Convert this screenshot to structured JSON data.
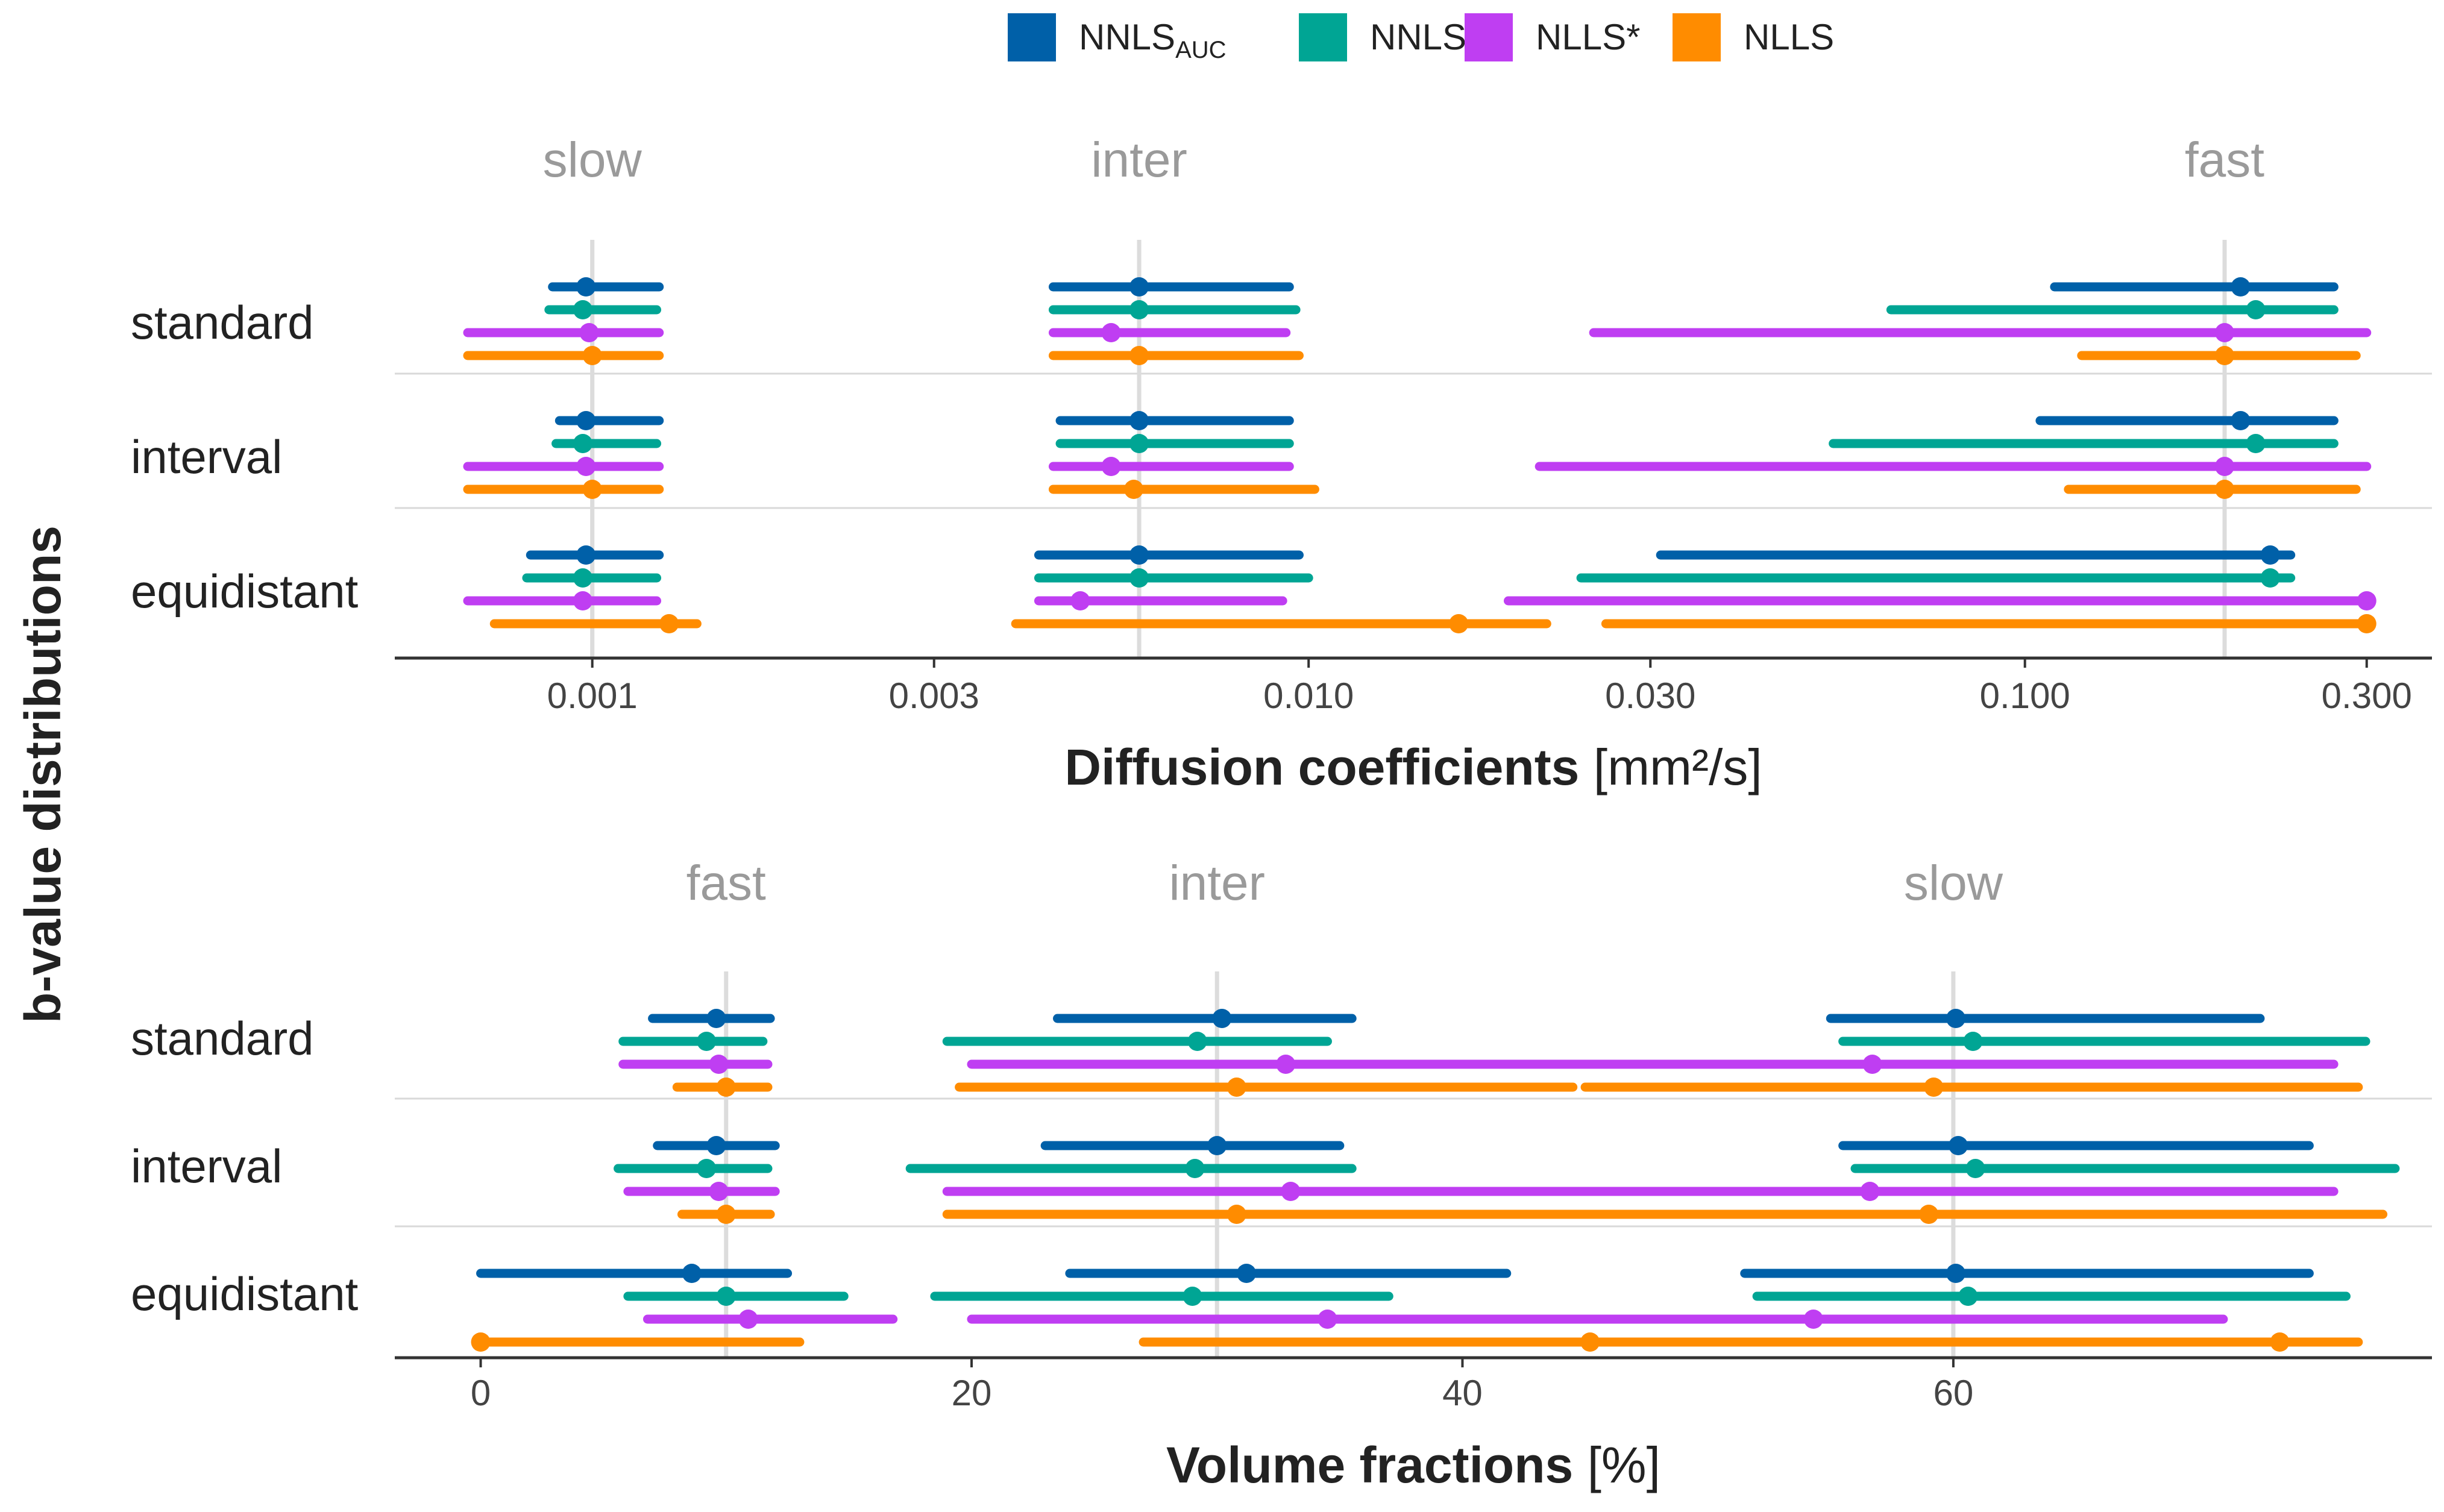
{
  "chart_data": {
    "type": "interval",
    "legend": {
      "position": "top",
      "entries": [
        {
          "name": "NNLS",
          "subscript": "AUC",
          "color": "#0060A8"
        },
        {
          "name": "NNLS",
          "subscript": "",
          "color": "#00A594"
        },
        {
          "name": "NLLS*",
          "subscript": "",
          "color": "#BF3EF2"
        },
        {
          "name": "NLLS",
          "subscript": "",
          "color": "#FF8C00"
        }
      ]
    },
    "ylabel": "b-value distributions",
    "rows": [
      "standard",
      "interval",
      "equidistant"
    ],
    "panels": [
      {
        "xlabel_bold": "Diffusion coefficients",
        "xlabel_unit": "[mm²/s]",
        "scale": "log",
        "xlim": [
          0.00053,
          0.37
        ],
        "ticks": [
          0.001,
          0.003,
          0.01,
          0.03,
          0.1,
          0.3
        ],
        "tick_labels": [
          "0.001",
          "0.003",
          "0.010",
          "0.030",
          "0.100",
          "0.300"
        ],
        "groups": [
          {
            "label": "slow",
            "ref": 0.001
          },
          {
            "label": "inter",
            "ref": 0.0058
          },
          {
            "label": "fast",
            "ref": 0.19
          }
        ],
        "data": {
          "standard": [
            [
              {
                "median": 0.00098,
                "low": 0.00088,
                "high": 0.00124
              },
              {
                "median": 0.0058,
                "low": 0.0044,
                "high": 0.0094
              },
              {
                "median": 0.2,
                "low": 0.11,
                "high": 0.27
              }
            ],
            [
              {
                "median": 0.00097,
                "low": 0.00087,
                "high": 0.00123
              },
              {
                "median": 0.0058,
                "low": 0.0044,
                "high": 0.0096
              },
              {
                "median": 0.21,
                "low": 0.065,
                "high": 0.27
              }
            ],
            [
              {
                "median": 0.00099,
                "low": 0.00067,
                "high": 0.00124
              },
              {
                "median": 0.0053,
                "low": 0.0044,
                "high": 0.0093
              },
              {
                "median": 0.19,
                "low": 0.025,
                "high": 0.3
              }
            ],
            [
              {
                "median": 0.001,
                "low": 0.00067,
                "high": 0.00124
              },
              {
                "median": 0.0058,
                "low": 0.0044,
                "high": 0.0097
              },
              {
                "median": 0.19,
                "low": 0.12,
                "high": 0.29
              }
            ]
          ],
          "interval": [
            [
              {
                "median": 0.00098,
                "low": 0.0009,
                "high": 0.00124
              },
              {
                "median": 0.0058,
                "low": 0.0045,
                "high": 0.0094
              },
              {
                "median": 0.2,
                "low": 0.105,
                "high": 0.27
              }
            ],
            [
              {
                "median": 0.00097,
                "low": 0.00089,
                "high": 0.00123
              },
              {
                "median": 0.0058,
                "low": 0.0045,
                "high": 0.0094
              },
              {
                "median": 0.21,
                "low": 0.054,
                "high": 0.27
              }
            ],
            [
              {
                "median": 0.00098,
                "low": 0.00067,
                "high": 0.00124
              },
              {
                "median": 0.0053,
                "low": 0.0044,
                "high": 0.0094
              },
              {
                "median": 0.19,
                "low": 0.021,
                "high": 0.3
              }
            ],
            [
              {
                "median": 0.001,
                "low": 0.00067,
                "high": 0.00124
              },
              {
                "median": 0.0057,
                "low": 0.0044,
                "high": 0.0102
              },
              {
                "median": 0.19,
                "low": 0.115,
                "high": 0.29
              }
            ]
          ],
          "equidistant": [
            [
              {
                "median": 0.00098,
                "low": 0.00082,
                "high": 0.00124
              },
              {
                "median": 0.0058,
                "low": 0.0042,
                "high": 0.0097
              },
              {
                "median": 0.22,
                "low": 0.031,
                "high": 0.235
              }
            ],
            [
              {
                "median": 0.00097,
                "low": 0.00081,
                "high": 0.00123
              },
              {
                "median": 0.0058,
                "low": 0.0042,
                "high": 0.01
              },
              {
                "median": 0.22,
                "low": 0.024,
                "high": 0.235
              }
            ],
            [
              {
                "median": 0.00097,
                "low": 0.00067,
                "high": 0.00123
              },
              {
                "median": 0.0048,
                "low": 0.0042,
                "high": 0.0092
              },
              {
                "median": 0.3,
                "low": 0.019,
                "high": 0.3
              }
            ],
            [
              {
                "median": 0.00128,
                "low": 0.00073,
                "high": 0.0014
              },
              {
                "median": 0.0162,
                "low": 0.0039,
                "high": 0.0215
              },
              {
                "median": 0.3,
                "low": 0.026,
                "high": 0.3
              }
            ]
          ]
        }
      },
      {
        "xlabel_bold": "Volume fractions",
        "xlabel_unit": "[%]",
        "scale": "linear",
        "xlim": [
          -3.5,
          79.5
        ],
        "ticks": [
          0,
          20,
          40,
          60
        ],
        "tick_labels": [
          "0",
          "20",
          "40",
          "60"
        ],
        "groups": [
          {
            "label": "fast",
            "ref": 10
          },
          {
            "label": "inter",
            "ref": 30
          },
          {
            "label": "slow",
            "ref": 60
          }
        ],
        "data": {
          "standard": [
            [
              {
                "median": 9.6,
                "low": 7.0,
                "high": 11.8
              },
              {
                "median": 30.2,
                "low": 23.5,
                "high": 35.5
              },
              {
                "median": 60.1,
                "low": 55.0,
                "high": 72.5
              }
            ],
            [
              {
                "median": 9.2,
                "low": 5.8,
                "high": 11.5
              },
              {
                "median": 29.2,
                "low": 19.0,
                "high": 34.5
              },
              {
                "median": 60.8,
                "low": 55.5,
                "high": 76.8
              }
            ],
            [
              {
                "median": 9.7,
                "low": 5.8,
                "high": 11.7
              },
              {
                "median": 32.8,
                "low": 20.0,
                "high": 48.5
              },
              {
                "median": 56.7,
                "low": 47.5,
                "high": 75.5
              }
            ],
            [
              {
                "median": 10.0,
                "low": 8.0,
                "high": 11.7
              },
              {
                "median": 30.8,
                "low": 19.5,
                "high": 44.5
              },
              {
                "median": 59.2,
                "low": 45.0,
                "high": 76.5
              }
            ]
          ],
          "interval": [
            [
              {
                "median": 9.6,
                "low": 7.2,
                "high": 12.0
              },
              {
                "median": 30.0,
                "low": 23.0,
                "high": 35.0
              },
              {
                "median": 60.2,
                "low": 55.5,
                "high": 74.5
              }
            ],
            [
              {
                "median": 9.2,
                "low": 5.6,
                "high": 11.7
              },
              {
                "median": 29.1,
                "low": 17.5,
                "high": 35.5
              },
              {
                "median": 60.9,
                "low": 56.0,
                "high": 78.0
              }
            ],
            [
              {
                "median": 9.7,
                "low": 6.0,
                "high": 12.0
              },
              {
                "median": 33.0,
                "low": 19.0,
                "high": 48.5
              },
              {
                "median": 56.6,
                "low": 47.0,
                "high": 75.5
              }
            ],
            [
              {
                "median": 10.0,
                "low": 8.2,
                "high": 11.8
              },
              {
                "median": 30.8,
                "low": 19.0,
                "high": 44.5
              },
              {
                "median": 59.0,
                "low": 44.0,
                "high": 77.5
              }
            ]
          ],
          "equidistant": [
            [
              {
                "median": 8.6,
                "low": 0.0,
                "high": 12.5
              },
              {
                "median": 31.2,
                "low": 24.0,
                "high": 41.8
              },
              {
                "median": 60.1,
                "low": 51.5,
                "high": 74.5
              }
            ],
            [
              {
                "median": 10.0,
                "low": 6.0,
                "high": 14.8
              },
              {
                "median": 29.0,
                "low": 18.5,
                "high": 37.0
              },
              {
                "median": 60.6,
                "low": 52.0,
                "high": 76.0
              }
            ],
            [
              {
                "median": 10.9,
                "low": 6.8,
                "high": 16.8
              },
              {
                "median": 34.5,
                "low": 20.0,
                "high": 41.5
              },
              {
                "median": 54.3,
                "low": 41.5,
                "high": 71.0
              }
            ],
            [
              {
                "median": 0.0,
                "low": 0.0,
                "high": 13.0
              },
              {
                "median": 45.2,
                "low": 27.0,
                "high": 49.5
              },
              {
                "median": 73.3,
                "low": 49.5,
                "high": 76.5
              }
            ]
          ]
        }
      }
    ]
  }
}
